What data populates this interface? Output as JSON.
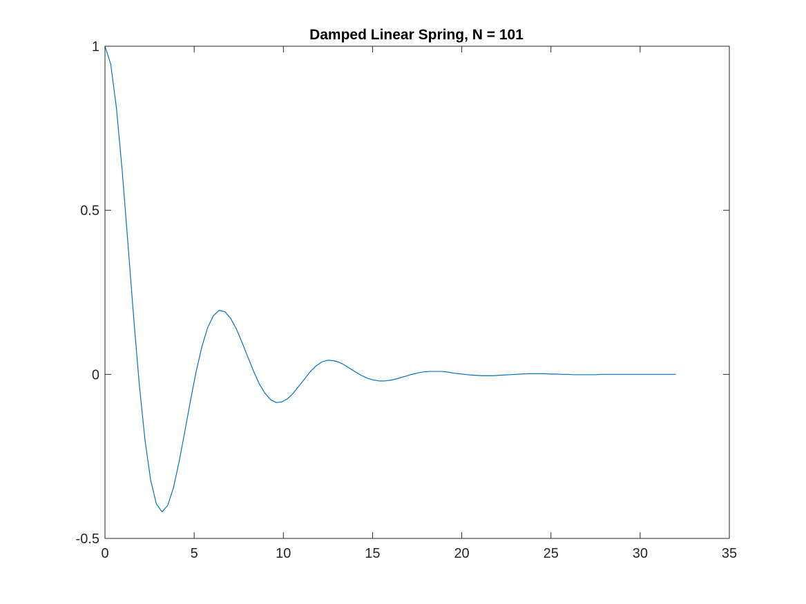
{
  "chart_data": {
    "type": "line",
    "title": "Damped Linear Spring, N = 101",
    "xlabel": "",
    "ylabel": "",
    "xlim": [
      0,
      35
    ],
    "ylim": [
      -0.5,
      1
    ],
    "xticks": [
      0,
      5,
      10,
      15,
      20,
      25,
      30,
      35
    ],
    "xtick_labels": [
      "0",
      "5",
      "10",
      "15",
      "20",
      "25",
      "30",
      "35"
    ],
    "yticks": [
      -0.5,
      0,
      0.5,
      1
    ],
    "ytick_labels": [
      "-0.5",
      "0",
      "0.5",
      "1"
    ],
    "grid": false,
    "box": true,
    "series": [
      {
        "color": "#0072BD",
        "x": [
          0,
          0.32,
          0.64,
          0.96,
          1.28,
          1.6,
          1.92,
          2.24,
          2.56,
          2.88,
          3.2,
          3.52,
          3.84,
          4.16,
          4.48,
          4.8,
          5.12,
          5.44,
          5.76,
          6.08,
          6.4,
          6.72,
          7.04,
          7.36,
          7.68,
          8.0,
          8.32,
          8.64,
          8.96,
          9.28,
          9.6,
          9.92,
          10.24,
          10.56,
          10.88,
          11.2,
          11.52,
          11.84,
          12.16,
          12.48,
          12.8,
          13.12,
          13.44,
          13.76,
          14.08,
          14.4,
          14.72,
          15.04,
          15.36,
          15.68,
          16.0,
          16.32,
          16.64,
          16.96,
          17.28,
          17.6,
          17.92,
          18.24,
          18.56,
          18.88,
          19.2,
          19.52,
          19.84,
          20.16,
          20.48,
          20.8,
          21.12,
          21.44,
          21.76,
          22.08,
          22.4,
          22.72,
          23.04,
          23.36,
          23.68,
          24.0,
          24.32,
          24.64,
          24.96,
          25.28,
          25.6,
          25.92,
          26.24,
          26.56,
          26.88,
          27.2,
          27.52,
          27.84,
          28.16,
          28.48,
          28.8,
          29.12,
          29.44,
          29.76,
          30.08,
          30.4,
          30.72,
          31.04,
          31.36,
          31.68,
          32.0
        ],
        "y": [
          1.0,
          0.946,
          0.813,
          0.624,
          0.404,
          0.178,
          -0.029,
          -0.199,
          -0.322,
          -0.395,
          -0.419,
          -0.399,
          -0.345,
          -0.265,
          -0.173,
          -0.078,
          0.011,
          0.086,
          0.143,
          0.179,
          0.195,
          0.191,
          0.171,
          0.139,
          0.098,
          0.054,
          0.011,
          -0.028,
          -0.057,
          -0.077,
          -0.086,
          -0.084,
          -0.074,
          -0.057,
          -0.035,
          -0.013,
          0.009,
          0.026,
          0.038,
          0.043,
          0.042,
          0.037,
          0.028,
          0.017,
          0.006,
          -0.004,
          -0.012,
          -0.017,
          -0.02,
          -0.02,
          -0.018,
          -0.014,
          -0.009,
          -0.004,
          0.001,
          0.005,
          0.008,
          0.009,
          0.009,
          0.009,
          0.007,
          0.004,
          0.002,
          0.0,
          -0.002,
          -0.003,
          -0.004,
          -0.004,
          -0.004,
          -0.003,
          -0.002,
          -0.001,
          0.0,
          0.001,
          0.002,
          0.002,
          0.002,
          0.002,
          0.001,
          0.001,
          0.0,
          0.0,
          -0.001,
          -0.001,
          -0.001,
          -0.001,
          -0.001,
          0.0,
          0.0,
          0.0,
          0.0,
          0.0,
          0.0,
          0.0,
          0.0,
          0.0,
          0.0,
          0.0,
          0.0,
          0.0,
          0.0
        ]
      }
    ]
  }
}
